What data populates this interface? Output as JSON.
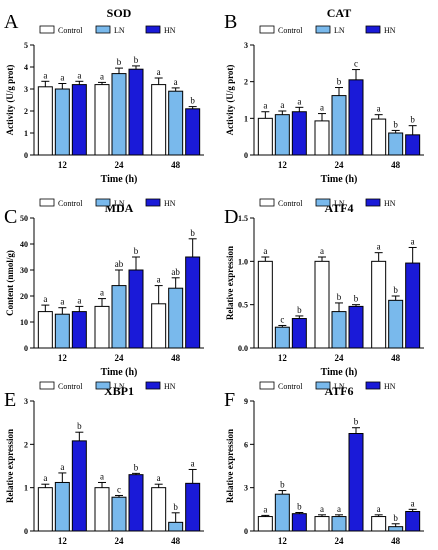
{
  "colors": {
    "Control": "#ffffff",
    "LN": "#79b9ec",
    "HN": "#1a1ad8",
    "stroke": "#000000"
  },
  "legend_labels": [
    "Control",
    "LN",
    "HN"
  ],
  "chart_data": [
    {
      "type": "bar",
      "panel_letter": "A",
      "title": "SOD",
      "ylabel": "Activity (U/g prot)",
      "xlabel": "Time (h)",
      "categories": [
        "12",
        "24",
        "48"
      ],
      "ylim": [
        0,
        5
      ],
      "yticks": [
        0,
        1,
        2,
        3,
        4,
        5
      ],
      "series": [
        {
          "name": "Control",
          "values": [
            3.1,
            3.2,
            3.2
          ],
          "errors": [
            0.25,
            0.1,
            0.3
          ],
          "letters": [
            "a",
            "a",
            "a"
          ]
        },
        {
          "name": "LN",
          "values": [
            3.0,
            3.7,
            2.9
          ],
          "errors": [
            0.25,
            0.25,
            0.15
          ],
          "letters": [
            "a",
            "b",
            "a"
          ]
        },
        {
          "name": "HN",
          "values": [
            3.2,
            3.9,
            2.1
          ],
          "errors": [
            0.15,
            0.15,
            0.1
          ],
          "letters": [
            "a",
            "b",
            "b"
          ]
        }
      ]
    },
    {
      "type": "bar",
      "panel_letter": "B",
      "title": "CAT",
      "ylabel": "Activity (U/g prot)",
      "xlabel": "Time (h)",
      "categories": [
        "12",
        "24",
        "48"
      ],
      "ylim": [
        0,
        3
      ],
      "yticks": [
        0,
        1,
        2,
        3
      ],
      "series": [
        {
          "name": "Control",
          "values": [
            1.0,
            0.93,
            0.98
          ],
          "errors": [
            0.18,
            0.2,
            0.12
          ],
          "letters": [
            "a",
            "a",
            "a"
          ]
        },
        {
          "name": "LN",
          "values": [
            1.1,
            1.62,
            0.6
          ],
          "errors": [
            0.1,
            0.22,
            0.07
          ],
          "letters": [
            "a",
            "b",
            "b"
          ]
        },
        {
          "name": "HN",
          "values": [
            1.18,
            2.05,
            0.55
          ],
          "errors": [
            0.12,
            0.28,
            0.25
          ],
          "letters": [
            "a",
            "c",
            "b"
          ]
        }
      ]
    },
    {
      "type": "bar",
      "panel_letter": "C",
      "title": "MDA",
      "ylabel": "Content (nmol/g)",
      "xlabel": "Time (h)",
      "categories": [
        "12",
        "24",
        "48"
      ],
      "ylim": [
        0,
        50
      ],
      "yticks": [
        0,
        10,
        20,
        30,
        40,
        50
      ],
      "series": [
        {
          "name": "Control",
          "values": [
            14,
            16,
            17
          ],
          "errors": [
            2.5,
            3,
            7
          ],
          "letters": [
            "a",
            "a",
            "a"
          ]
        },
        {
          "name": "LN",
          "values": [
            13,
            24,
            23
          ],
          "errors": [
            2.5,
            6,
            4
          ],
          "letters": [
            "a",
            "ab",
            "ab"
          ]
        },
        {
          "name": "HN",
          "values": [
            14,
            30,
            35
          ],
          "errors": [
            2,
            5,
            7
          ],
          "letters": [
            "a",
            "b",
            "b"
          ]
        }
      ]
    },
    {
      "type": "bar",
      "panel_letter": "D",
      "title": "ATF4",
      "ylabel": "Relative expression",
      "xlabel": "Time (h)",
      "categories": [
        "12",
        "24",
        "48"
      ],
      "ylim": [
        0,
        1.5
      ],
      "yticks": [
        0.0,
        0.5,
        1.0,
        1.5
      ],
      "series": [
        {
          "name": "Control",
          "values": [
            1.0,
            1.0,
            1.0
          ],
          "errors": [
            0.05,
            0.05,
            0.1
          ],
          "letters": [
            "a",
            "a",
            "a"
          ]
        },
        {
          "name": "LN",
          "values": [
            0.24,
            0.42,
            0.55
          ],
          "errors": [
            0.02,
            0.1,
            0.05
          ],
          "letters": [
            "c",
            "b",
            "b"
          ]
        },
        {
          "name": "HN",
          "values": [
            0.34,
            0.48,
            0.98
          ],
          "errors": [
            0.03,
            0.02,
            0.18
          ],
          "letters": [
            "b",
            "b",
            "a"
          ]
        }
      ]
    },
    {
      "type": "bar",
      "panel_letter": "E",
      "title": "XBP1",
      "ylabel": "Relative expression",
      "xlabel": "",
      "categories": [
        "12",
        "24",
        "48"
      ],
      "ylim": [
        0,
        3
      ],
      "yticks": [
        0,
        1,
        2,
        3
      ],
      "series": [
        {
          "name": "Control",
          "values": [
            1.0,
            1.0,
            1.0
          ],
          "errors": [
            0.08,
            0.12,
            0.08
          ],
          "letters": [
            "a",
            "a",
            "a"
          ]
        },
        {
          "name": "LN",
          "values": [
            1.12,
            0.78,
            0.2
          ],
          "errors": [
            0.22,
            0.04,
            0.22
          ],
          "letters": [
            "a",
            "c",
            "b"
          ]
        },
        {
          "name": "HN",
          "values": [
            2.08,
            1.3,
            1.1
          ],
          "errors": [
            0.2,
            0.03,
            0.32
          ],
          "letters": [
            "b",
            "b",
            "a"
          ]
        }
      ]
    },
    {
      "type": "bar",
      "panel_letter": "F",
      "title": "ATF6",
      "ylabel": "Relative expression",
      "xlabel": "",
      "categories": [
        "12",
        "24",
        "48"
      ],
      "ylim": [
        0,
        9
      ],
      "yticks": [
        0,
        3,
        6,
        9
      ],
      "series": [
        {
          "name": "Control",
          "values": [
            1.0,
            1.0,
            1.0
          ],
          "errors": [
            0.08,
            0.12,
            0.12
          ],
          "letters": [
            "a",
            "a",
            "a"
          ]
        },
        {
          "name": "LN",
          "values": [
            2.55,
            1.0,
            0.3
          ],
          "errors": [
            0.25,
            0.12,
            0.2
          ],
          "letters": [
            "b",
            "a",
            "b"
          ]
        },
        {
          "name": "HN",
          "values": [
            1.2,
            6.75,
            1.35
          ],
          "errors": [
            0.08,
            0.4,
            0.15
          ],
          "letters": [
            "b",
            "b",
            "a"
          ]
        }
      ]
    }
  ]
}
